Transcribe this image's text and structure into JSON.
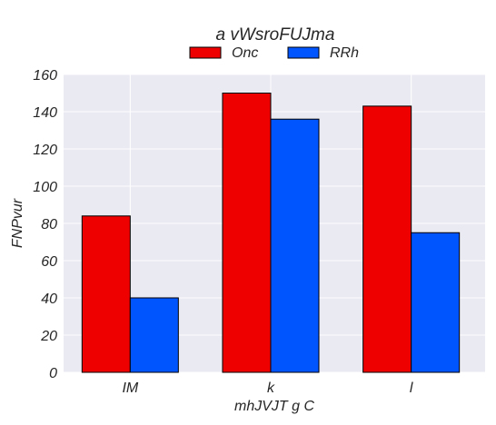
{
  "chart_data": {
    "type": "bar",
    "title": "a  vWsroFUJma",
    "xlabel": "mhJVJT g C",
    "ylabel": "FNPvur",
    "categories": [
      "IM",
      "k",
      "l"
    ],
    "series": [
      {
        "name": "Onc",
        "color": "#ee0000",
        "values": [
          84,
          150,
          143
        ]
      },
      {
        "name": "RRh",
        "color": "#0055ff",
        "values": [
          40,
          136,
          75
        ]
      }
    ],
    "ylim": [
      0,
      160
    ],
    "yticks": [
      0,
      20,
      40,
      60,
      80,
      100,
      120,
      140,
      160
    ],
    "grid": true,
    "legend_position": "top-center"
  }
}
